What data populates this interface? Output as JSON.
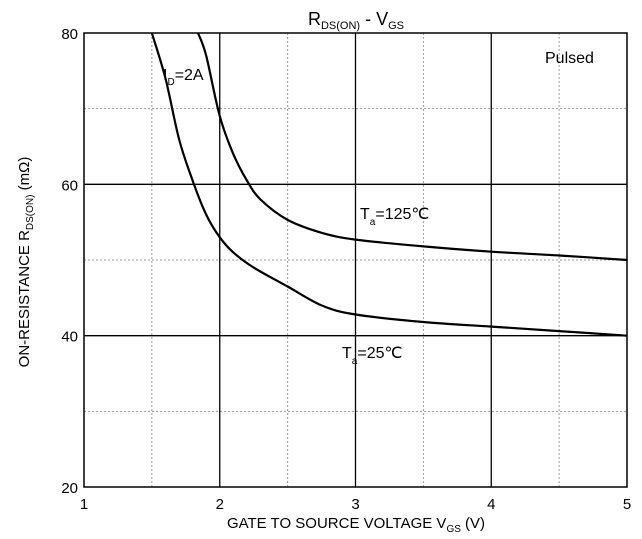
{
  "chart_data": {
    "type": "line",
    "title": {
      "main": "R",
      "sub1": "DS(ON)",
      "mid": " - V",
      "sub2": "GS"
    },
    "xlabel": {
      "main": "GATE TO SOURCE VOLTAGE V",
      "sub": "GS",
      "tail": " (V)"
    },
    "ylabel": {
      "main": "ON-RESISTANCE R",
      "sub": "DS(ON)",
      "tail": " (mΩ)"
    },
    "xlim": [
      1,
      5
    ],
    "ylim": [
      20,
      80
    ],
    "x_ticks": [
      1,
      2,
      3,
      4,
      5
    ],
    "y_ticks": [
      20,
      40,
      60,
      80
    ],
    "grid": {
      "major_x": [
        2,
        3,
        4
      ],
      "major_y": [
        40,
        60
      ],
      "minor_x": [
        1.5,
        2.5,
        3.5,
        4.5
      ],
      "minor_y": [
        30,
        50,
        70
      ]
    },
    "annotations": {
      "pulsed": "Pulsed",
      "id": {
        "main": "I",
        "sub": "D",
        "tail": "=2A"
      },
      "t125": {
        "main": "T",
        "sub": "a",
        "tail": "=125℃"
      },
      "t25": {
        "main": "T",
        "sub": "a",
        "tail": "=25℃"
      }
    },
    "series": [
      {
        "points": [
          [
            1.84,
            80
          ],
          [
            1.9,
            77
          ],
          [
            2.0,
            69
          ],
          [
            2.1,
            64
          ],
          [
            2.2,
            60.5
          ],
          [
            2.3,
            58
          ],
          [
            2.5,
            55.3
          ],
          [
            2.75,
            53.6
          ],
          [
            3.0,
            52.7
          ],
          [
            3.5,
            51.8
          ],
          [
            4.0,
            51.1
          ],
          [
            4.5,
            50.6
          ],
          [
            5.0,
            50.0
          ]
        ]
      },
      {
        "points": [
          [
            1.5,
            80
          ],
          [
            1.6,
            74
          ],
          [
            1.7,
            66
          ],
          [
            1.8,
            60.5
          ],
          [
            1.9,
            56
          ],
          [
            2.0,
            53
          ],
          [
            2.1,
            51
          ],
          [
            2.25,
            49
          ],
          [
            2.5,
            46.5
          ],
          [
            2.75,
            44
          ],
          [
            3.0,
            42.8
          ],
          [
            3.5,
            41.8
          ],
          [
            4.0,
            41.2
          ],
          [
            4.5,
            40.6
          ],
          [
            5.0,
            40.0
          ]
        ]
      }
    ]
  }
}
